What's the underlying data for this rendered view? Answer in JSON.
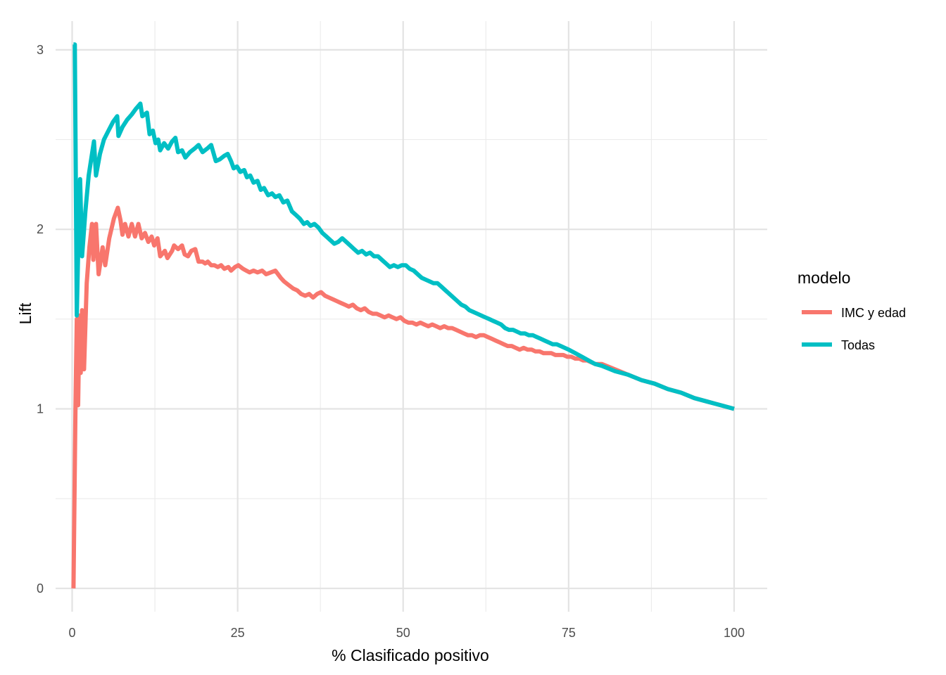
{
  "chart_data": {
    "type": "line",
    "title": "",
    "xlabel": "% Clasificado positivo",
    "ylabel": "Lift",
    "xlim": [
      -2.5,
      105
    ],
    "ylim": [
      -0.13,
      3.16
    ],
    "x_ticks": [
      0,
      25,
      50,
      75,
      100
    ],
    "x_tick_labels": [
      "0",
      "25",
      "50",
      "75",
      "100"
    ],
    "y_ticks": [
      0,
      1,
      2,
      3
    ],
    "y_tick_labels": [
      "0",
      "1",
      "2",
      "3"
    ],
    "grid": true,
    "legend": {
      "title": "modelo",
      "position": "right"
    },
    "series": [
      {
        "name": "IMC y edad",
        "color": "#F8766D",
        "points": [
          [
            0.2,
            0.0
          ],
          [
            0.5,
            1.0
          ],
          [
            0.7,
            1.5
          ],
          [
            0.9,
            1.02
          ],
          [
            1.1,
            1.52
          ],
          [
            1.3,
            1.2
          ],
          [
            1.5,
            1.55
          ],
          [
            1.8,
            1.22
          ],
          [
            2.2,
            1.7
          ],
          [
            2.6,
            1.9
          ],
          [
            3.0,
            2.03
          ],
          [
            3.2,
            1.83
          ],
          [
            3.6,
            2.03
          ],
          [
            4.0,
            1.75
          ],
          [
            4.6,
            1.9
          ],
          [
            5.0,
            1.8
          ],
          [
            5.6,
            1.95
          ],
          [
            6.3,
            2.06
          ],
          [
            6.9,
            2.12
          ],
          [
            7.3,
            2.05
          ],
          [
            7.6,
            1.97
          ],
          [
            8.0,
            2.03
          ],
          [
            8.5,
            1.96
          ],
          [
            9.0,
            2.03
          ],
          [
            9.5,
            1.96
          ],
          [
            10.0,
            2.03
          ],
          [
            10.5,
            1.95
          ],
          [
            11.0,
            1.98
          ],
          [
            11.5,
            1.93
          ],
          [
            12.0,
            1.96
          ],
          [
            12.4,
            1.91
          ],
          [
            12.9,
            1.95
          ],
          [
            13.3,
            1.85
          ],
          [
            14.0,
            1.88
          ],
          [
            14.4,
            1.84
          ],
          [
            15.1,
            1.88
          ],
          [
            15.4,
            1.91
          ],
          [
            16.0,
            1.89
          ],
          [
            16.6,
            1.91
          ],
          [
            17.0,
            1.86
          ],
          [
            17.5,
            1.85
          ],
          [
            18.0,
            1.88
          ],
          [
            18.6,
            1.89
          ],
          [
            19.1,
            1.82
          ],
          [
            19.7,
            1.82
          ],
          [
            20.1,
            1.81
          ],
          [
            20.5,
            1.82
          ],
          [
            21.0,
            1.8
          ],
          [
            21.5,
            1.8
          ],
          [
            22.0,
            1.79
          ],
          [
            22.5,
            1.8
          ],
          [
            23.0,
            1.78
          ],
          [
            23.6,
            1.79
          ],
          [
            24.0,
            1.77
          ],
          [
            24.6,
            1.79
          ],
          [
            25.1,
            1.8
          ],
          [
            25.8,
            1.78
          ],
          [
            26.3,
            1.77
          ],
          [
            26.8,
            1.76
          ],
          [
            27.4,
            1.77
          ],
          [
            28.0,
            1.76
          ],
          [
            28.7,
            1.77
          ],
          [
            29.3,
            1.75
          ],
          [
            30.0,
            1.76
          ],
          [
            30.7,
            1.77
          ],
          [
            31.5,
            1.73
          ],
          [
            32.0,
            1.71
          ],
          [
            32.7,
            1.69
          ],
          [
            33.4,
            1.67
          ],
          [
            34.0,
            1.66
          ],
          [
            34.6,
            1.64
          ],
          [
            35.2,
            1.63
          ],
          [
            35.8,
            1.64
          ],
          [
            36.4,
            1.62
          ],
          [
            37.0,
            1.64
          ],
          [
            37.6,
            1.65
          ],
          [
            38.2,
            1.63
          ],
          [
            38.8,
            1.62
          ],
          [
            39.4,
            1.61
          ],
          [
            40.0,
            1.6
          ],
          [
            40.6,
            1.59
          ],
          [
            41.2,
            1.58
          ],
          [
            41.8,
            1.57
          ],
          [
            42.4,
            1.58
          ],
          [
            43.0,
            1.56
          ],
          [
            43.6,
            1.55
          ],
          [
            44.2,
            1.56
          ],
          [
            44.8,
            1.54
          ],
          [
            45.4,
            1.53
          ],
          [
            46.0,
            1.53
          ],
          [
            46.6,
            1.52
          ],
          [
            47.2,
            1.51
          ],
          [
            47.8,
            1.52
          ],
          [
            48.4,
            1.51
          ],
          [
            49.0,
            1.5
          ],
          [
            49.6,
            1.51
          ],
          [
            50.2,
            1.49
          ],
          [
            50.8,
            1.48
          ],
          [
            51.4,
            1.48
          ],
          [
            52.0,
            1.47
          ],
          [
            52.6,
            1.48
          ],
          [
            53.2,
            1.47
          ],
          [
            53.8,
            1.46
          ],
          [
            54.4,
            1.47
          ],
          [
            55.0,
            1.46
          ],
          [
            55.6,
            1.45
          ],
          [
            56.2,
            1.46
          ],
          [
            56.8,
            1.45
          ],
          [
            57.4,
            1.45
          ],
          [
            58.0,
            1.44
          ],
          [
            58.6,
            1.43
          ],
          [
            59.2,
            1.42
          ],
          [
            59.8,
            1.41
          ],
          [
            60.4,
            1.41
          ],
          [
            61.0,
            1.4
          ],
          [
            61.6,
            1.41
          ],
          [
            62.2,
            1.41
          ],
          [
            62.8,
            1.4
          ],
          [
            63.4,
            1.39
          ],
          [
            64.0,
            1.38
          ],
          [
            64.6,
            1.37
          ],
          [
            65.2,
            1.36
          ],
          [
            65.8,
            1.35
          ],
          [
            66.4,
            1.35
          ],
          [
            67.0,
            1.34
          ],
          [
            67.6,
            1.33
          ],
          [
            68.2,
            1.34
          ],
          [
            68.8,
            1.33
          ],
          [
            69.4,
            1.33
          ],
          [
            70.0,
            1.32
          ],
          [
            70.6,
            1.32
          ],
          [
            71.2,
            1.31
          ],
          [
            71.8,
            1.31
          ],
          [
            72.4,
            1.31
          ],
          [
            73.0,
            1.3
          ],
          [
            73.6,
            1.3
          ],
          [
            74.2,
            1.3
          ],
          [
            74.8,
            1.29
          ],
          [
            75.4,
            1.29
          ],
          [
            76.0,
            1.28
          ],
          [
            76.6,
            1.28
          ],
          [
            77.2,
            1.27
          ],
          [
            77.8,
            1.27
          ],
          [
            78.4,
            1.26
          ],
          [
            79.0,
            1.25
          ],
          [
            80.0,
            1.25
          ],
          [
            82.0,
            1.22
          ],
          [
            84.0,
            1.19
          ],
          [
            86.0,
            1.16
          ],
          [
            88.0,
            1.14
          ],
          [
            90.0,
            1.11
          ],
          [
            92.0,
            1.09
          ],
          [
            94.0,
            1.06
          ],
          [
            96.0,
            1.04
          ],
          [
            98.0,
            1.02
          ],
          [
            100.0,
            1.0
          ]
        ]
      },
      {
        "name": "Todas",
        "color": "#00BFC4",
        "points": [
          [
            0.2,
            3.03
          ],
          [
            0.4,
            3.03
          ],
          [
            0.7,
            1.52
          ],
          [
            0.9,
            1.87
          ],
          [
            1.2,
            2.28
          ],
          [
            1.5,
            1.85
          ],
          [
            2.0,
            2.1
          ],
          [
            2.5,
            2.3
          ],
          [
            3.0,
            2.42
          ],
          [
            3.3,
            2.49
          ],
          [
            3.6,
            2.3
          ],
          [
            4.2,
            2.42
          ],
          [
            4.8,
            2.5
          ],
          [
            5.5,
            2.55
          ],
          [
            6.2,
            2.6
          ],
          [
            6.8,
            2.63
          ],
          [
            7.0,
            2.52
          ],
          [
            7.6,
            2.57
          ],
          [
            8.3,
            2.61
          ],
          [
            9.0,
            2.64
          ],
          [
            9.6,
            2.67
          ],
          [
            10.3,
            2.7
          ],
          [
            10.6,
            2.63
          ],
          [
            11.3,
            2.65
          ],
          [
            11.7,
            2.53
          ],
          [
            12.2,
            2.55
          ],
          [
            12.6,
            2.48
          ],
          [
            13.0,
            2.5
          ],
          [
            13.3,
            2.44
          ],
          [
            13.9,
            2.48
          ],
          [
            14.5,
            2.45
          ],
          [
            15.1,
            2.49
          ],
          [
            15.6,
            2.51
          ],
          [
            16.0,
            2.43
          ],
          [
            16.6,
            2.44
          ],
          [
            17.1,
            2.4
          ],
          [
            17.8,
            2.43
          ],
          [
            18.5,
            2.45
          ],
          [
            19.1,
            2.47
          ],
          [
            19.7,
            2.43
          ],
          [
            20.4,
            2.45
          ],
          [
            21.0,
            2.47
          ],
          [
            21.7,
            2.38
          ],
          [
            22.3,
            2.39
          ],
          [
            23.0,
            2.41
          ],
          [
            23.5,
            2.42
          ],
          [
            24.0,
            2.38
          ],
          [
            24.4,
            2.34
          ],
          [
            24.9,
            2.35
          ],
          [
            25.4,
            2.32
          ],
          [
            26.0,
            2.33
          ],
          [
            26.4,
            2.29
          ],
          [
            26.9,
            2.3
          ],
          [
            27.4,
            2.26
          ],
          [
            28.0,
            2.27
          ],
          [
            28.5,
            2.22
          ],
          [
            29.0,
            2.23
          ],
          [
            29.6,
            2.19
          ],
          [
            30.2,
            2.2
          ],
          [
            30.7,
            2.18
          ],
          [
            31.3,
            2.19
          ],
          [
            31.9,
            2.15
          ],
          [
            32.5,
            2.16
          ],
          [
            33.2,
            2.1
          ],
          [
            33.8,
            2.08
          ],
          [
            34.4,
            2.06
          ],
          [
            35.0,
            2.03
          ],
          [
            35.5,
            2.04
          ],
          [
            36.0,
            2.02
          ],
          [
            36.6,
            2.03
          ],
          [
            37.2,
            2.01
          ],
          [
            37.8,
            1.98
          ],
          [
            38.4,
            1.96
          ],
          [
            39.0,
            1.94
          ],
          [
            39.6,
            1.92
          ],
          [
            40.2,
            1.93
          ],
          [
            40.8,
            1.95
          ],
          [
            41.4,
            1.93
          ],
          [
            42.0,
            1.91
          ],
          [
            42.6,
            1.89
          ],
          [
            43.2,
            1.87
          ],
          [
            43.8,
            1.88
          ],
          [
            44.4,
            1.86
          ],
          [
            45.0,
            1.87
          ],
          [
            45.6,
            1.85
          ],
          [
            46.2,
            1.85
          ],
          [
            46.8,
            1.83
          ],
          [
            47.4,
            1.81
          ],
          [
            48.0,
            1.79
          ],
          [
            48.6,
            1.8
          ],
          [
            49.2,
            1.79
          ],
          [
            49.8,
            1.8
          ],
          [
            50.4,
            1.8
          ],
          [
            51.0,
            1.78
          ],
          [
            51.6,
            1.77
          ],
          [
            52.2,
            1.75
          ],
          [
            52.8,
            1.73
          ],
          [
            53.4,
            1.72
          ],
          [
            54.0,
            1.71
          ],
          [
            54.6,
            1.7
          ],
          [
            55.2,
            1.7
          ],
          [
            55.8,
            1.68
          ],
          [
            56.4,
            1.66
          ],
          [
            57.0,
            1.64
          ],
          [
            57.6,
            1.62
          ],
          [
            58.2,
            1.6
          ],
          [
            58.8,
            1.58
          ],
          [
            59.4,
            1.57
          ],
          [
            60.0,
            1.55
          ],
          [
            60.6,
            1.54
          ],
          [
            61.2,
            1.53
          ],
          [
            61.8,
            1.52
          ],
          [
            62.4,
            1.51
          ],
          [
            63.0,
            1.5
          ],
          [
            63.6,
            1.49
          ],
          [
            64.2,
            1.48
          ],
          [
            64.8,
            1.47
          ],
          [
            65.4,
            1.45
          ],
          [
            66.0,
            1.44
          ],
          [
            66.6,
            1.44
          ],
          [
            67.2,
            1.43
          ],
          [
            67.8,
            1.42
          ],
          [
            68.4,
            1.42
          ],
          [
            69.0,
            1.41
          ],
          [
            69.6,
            1.41
          ],
          [
            70.2,
            1.4
          ],
          [
            70.8,
            1.39
          ],
          [
            71.4,
            1.38
          ],
          [
            72.0,
            1.37
          ],
          [
            72.6,
            1.36
          ],
          [
            73.2,
            1.36
          ],
          [
            73.8,
            1.35
          ],
          [
            74.4,
            1.34
          ],
          [
            75.0,
            1.33
          ],
          [
            76.0,
            1.31
          ],
          [
            77.0,
            1.29
          ],
          [
            78.0,
            1.27
          ],
          [
            79.0,
            1.25
          ],
          [
            80.0,
            1.24
          ],
          [
            82.0,
            1.21
          ],
          [
            84.0,
            1.19
          ],
          [
            86.0,
            1.16
          ],
          [
            88.0,
            1.14
          ],
          [
            90.0,
            1.11
          ],
          [
            92.0,
            1.09
          ],
          [
            94.0,
            1.06
          ],
          [
            96.0,
            1.04
          ],
          [
            98.0,
            1.02
          ],
          [
            100.0,
            1.0
          ]
        ]
      }
    ]
  }
}
